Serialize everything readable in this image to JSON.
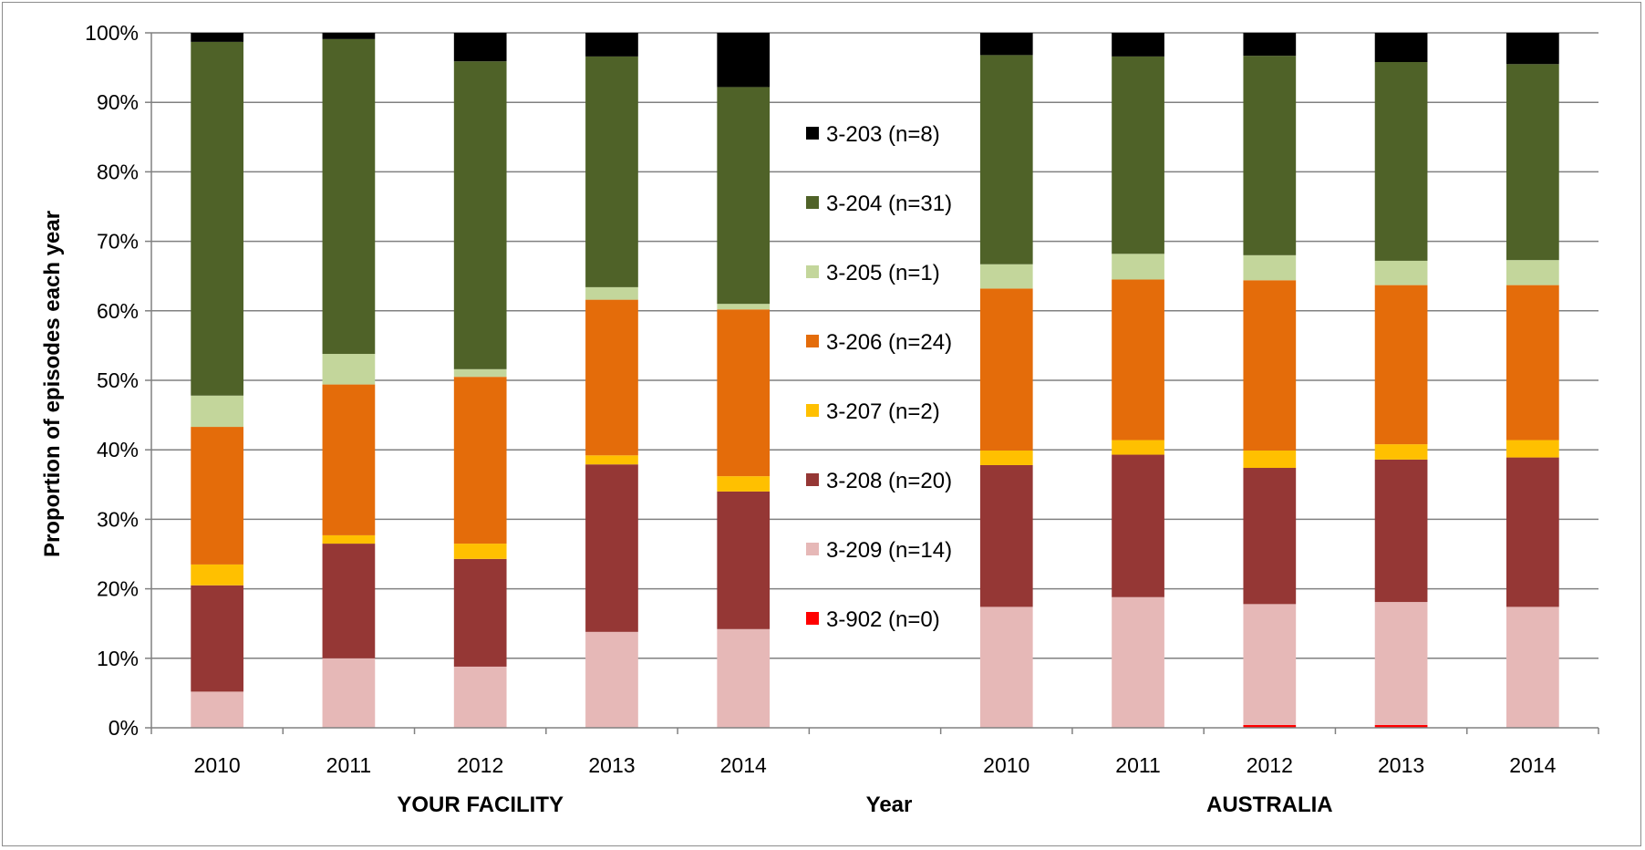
{
  "chart_data": {
    "type": "bar",
    "stacked": true,
    "ylabel": "Proportion of episodes each year",
    "xlabel": "Year",
    "ylim": [
      0,
      100
    ],
    "yticks": [
      "0%",
      "10%",
      "20%",
      "30%",
      "40%",
      "50%",
      "60%",
      "70%",
      "80%",
      "90%",
      "100%"
    ],
    "groups": [
      {
        "label": "YOUR FACILITY",
        "categories": [
          "2010",
          "2011",
          "2012",
          "2013",
          "2014"
        ]
      },
      {
        "label": "AUSTRALIA",
        "categories": [
          "2010",
          "2011",
          "2012",
          "2013",
          "2014"
        ]
      }
    ],
    "categories": [
      "2010",
      "2011",
      "2012",
      "2013",
      "2014",
      "",
      "2010",
      "2011",
      "2012",
      "2013",
      "2014"
    ],
    "series": [
      {
        "name": "3-902 (n=0)",
        "color": "#ff0000",
        "values": [
          0,
          0,
          0,
          0,
          0,
          null,
          0,
          0,
          0.4,
          0.4,
          0
        ]
      },
      {
        "name": "3-209 (n=14)",
        "color": "#e6b8b7",
        "values": [
          5.2,
          10,
          8.8,
          13.8,
          14.2,
          null,
          17.4,
          18.8,
          17.4,
          17.7,
          17.4
        ]
      },
      {
        "name": "3-208 (n=20)",
        "color": "#953735",
        "values": [
          15.3,
          16.5,
          15.5,
          24.1,
          19.8,
          null,
          20.4,
          20.5,
          19.6,
          20.5,
          21.5
        ]
      },
      {
        "name": "3-207 (n=2)",
        "color": "#ffc000",
        "values": [
          3,
          1.2,
          2.2,
          1.3,
          2.2,
          null,
          2.1,
          2.1,
          2.5,
          2.2,
          2.5
        ]
      },
      {
        "name": "3-206 (n=24)",
        "color": "#e46c0a",
        "values": [
          19.8,
          21.7,
          24,
          22.4,
          24,
          null,
          23.3,
          23.1,
          24.5,
          22.9,
          22.3
        ]
      },
      {
        "name": "3-205 (n=1)",
        "color": "#c3d69b",
        "values": [
          4.5,
          4.4,
          1.1,
          1.8,
          0.8,
          null,
          3.5,
          3.7,
          3.6,
          3.5,
          3.6
        ]
      },
      {
        "name": "3-204 (n=31)",
        "color": "#4f6228",
        "values": [
          50.9,
          45.3,
          44.3,
          33.2,
          31.2,
          null,
          30.1,
          28.4,
          28.7,
          28.6,
          28.2
        ]
      },
      {
        "name": "3-203 (n=8)",
        "color": "#000000",
        "values": [
          1.3,
          0.9,
          4.1,
          3.4,
          7.8,
          null,
          3.2,
          3.4,
          3.7,
          4.2,
          4.5
        ]
      }
    ],
    "legend_order": [
      "3-203 (n=8)",
      "3-204 (n=31)",
      "3-205 (n=1)",
      "3-206 (n=24)",
      "3-207 (n=2)",
      "3-208 (n=20)",
      "3-209 (n=14)",
      "3-902 (n=0)"
    ],
    "legend_position": "center",
    "grid": true
  }
}
